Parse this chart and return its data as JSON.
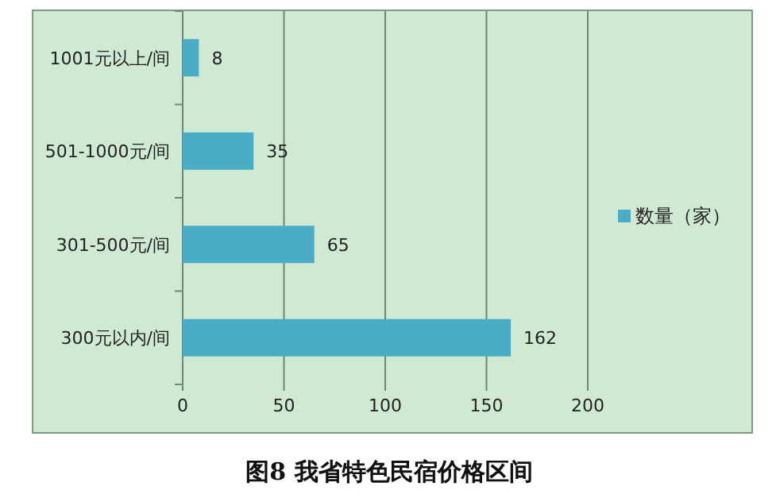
{
  "chart_data": {
    "type": "bar",
    "orientation": "horizontal",
    "title": "图8  我省特色民宿价格区间",
    "categories": [
      "1001元以上/间",
      "501-1000元/间",
      "301-500元/间",
      "300元以内/间"
    ],
    "series": [
      {
        "name": "数量（家）",
        "color": "#4bacc6",
        "values": [
          8,
          35,
          65,
          162
        ]
      }
    ],
    "xlim": [
      0,
      200
    ],
    "xticks": [
      0,
      50,
      100,
      150,
      200
    ],
    "grid": "x",
    "legend": "right",
    "data_labels": true
  }
}
